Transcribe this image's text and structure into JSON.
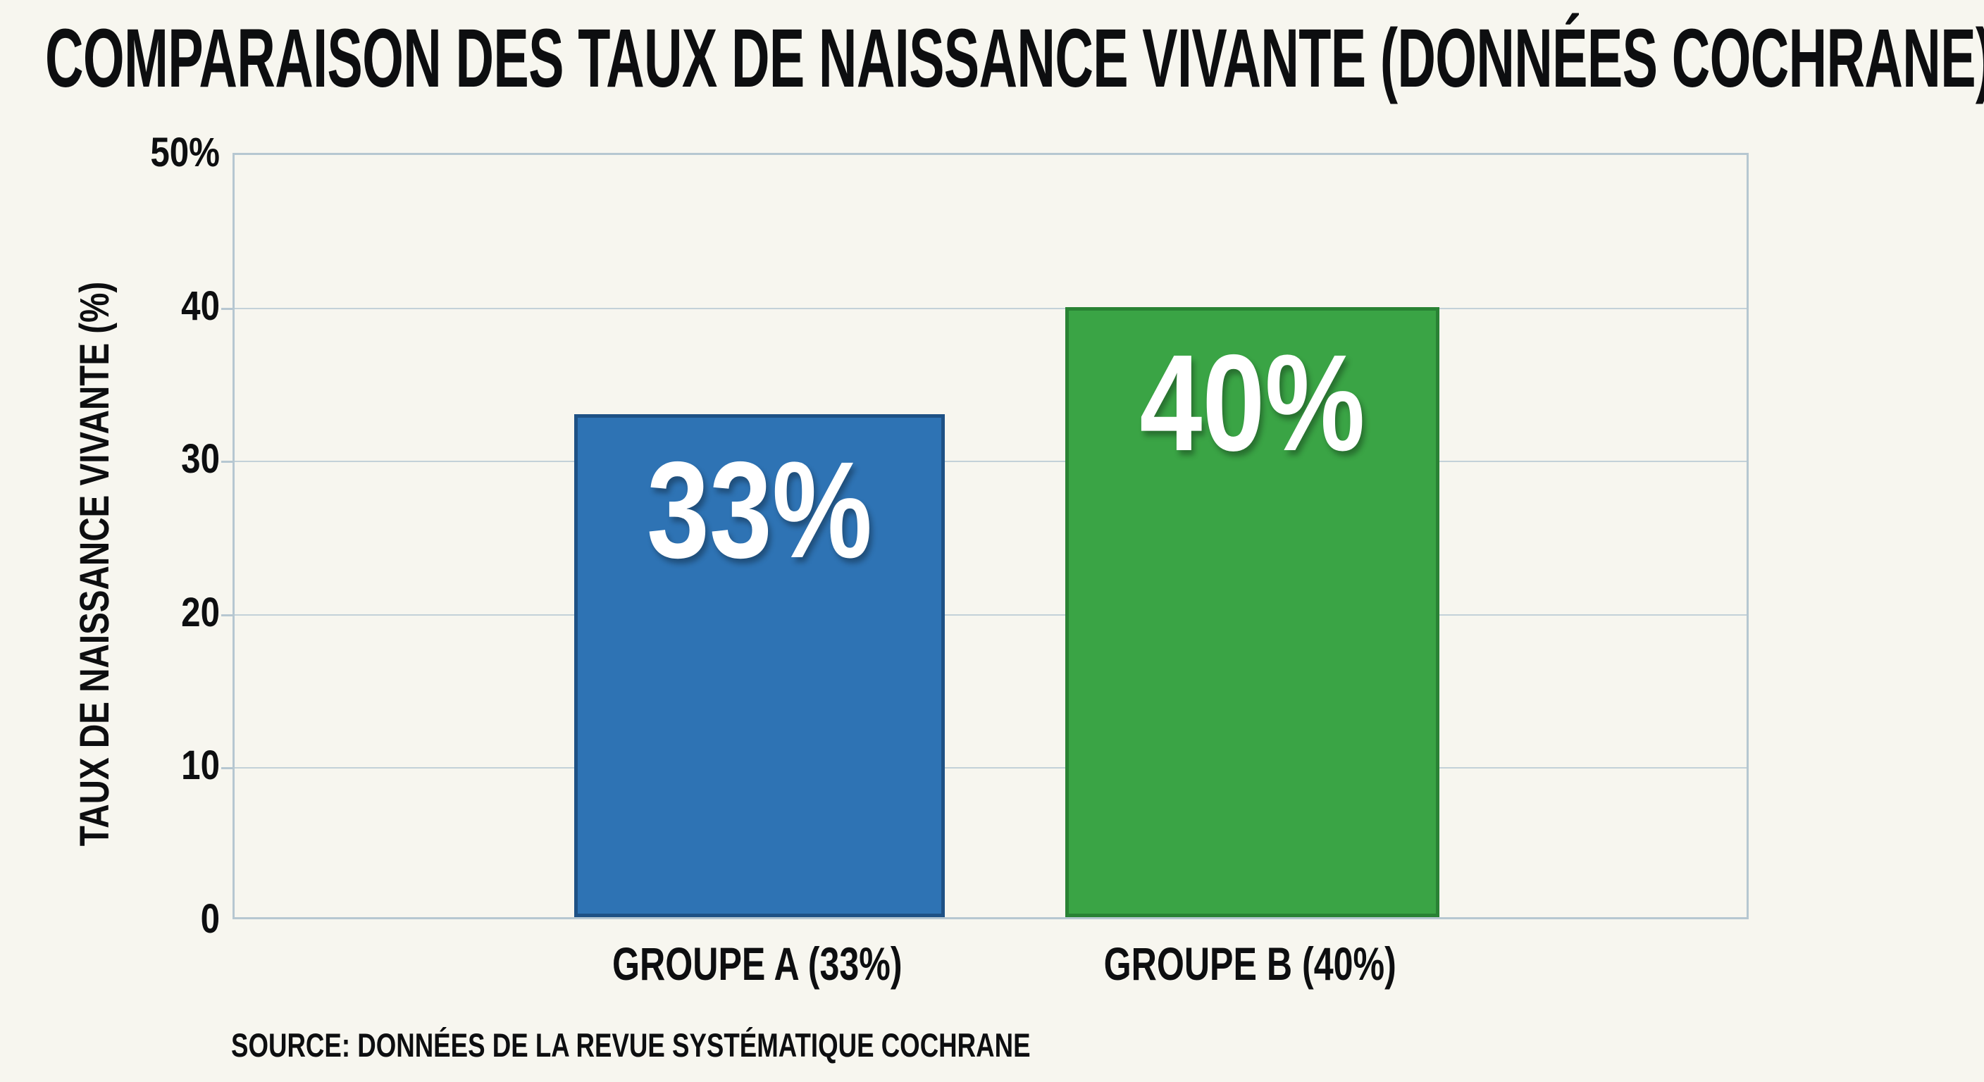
{
  "chart_data": {
    "type": "bar",
    "title": "COMPARAISON DES TAUX DE NAISSANCE VIVANTE (DONNÉES COCHRANE)",
    "ylabel": "TAUX DE NAISSANCE VIVANTE (%)",
    "xlabel": "",
    "ylim": [
      0,
      50
    ],
    "ytick_labels": [
      "50%",
      "40",
      "30",
      "20",
      "10",
      "0"
    ],
    "ytick_values": [
      50,
      40,
      30,
      20,
      10,
      0
    ],
    "grid": true,
    "legend": false,
    "categories": [
      "GROUPE A (33%)",
      "GROUPE B (40%)"
    ],
    "values": [
      33,
      40
    ],
    "bar_value_labels": [
      "33%",
      "40%"
    ],
    "bar_colors": [
      "#2e73b4",
      "#3aa445"
    ],
    "bar_edge_colors": [
      "#1d5289",
      "#23803100"
    ],
    "source": "SOURCE: DONNÉES DE LA REVUE SYSTÉMATIQUE COCHRANE",
    "colors": {
      "background": "#f7f6ef",
      "gridline": "#c3d1d8",
      "frame": "#b6c7d1",
      "text": "#0d0e10",
      "bar_label": "#ffffff"
    }
  }
}
